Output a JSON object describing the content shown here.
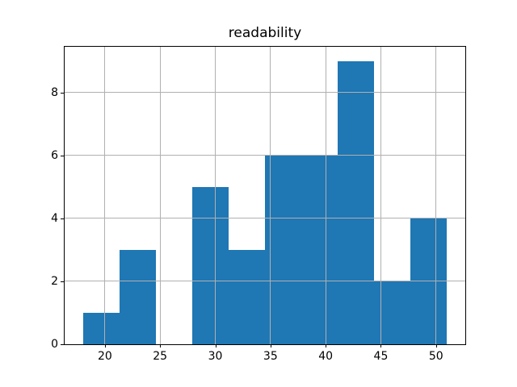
{
  "figure": {
    "title": "readability"
  },
  "chart_data": {
    "type": "bar",
    "subtype": "histogram",
    "title": "readability",
    "xlabel": "",
    "ylabel": "",
    "bin_edges": [
      18.0,
      21.3,
      24.6,
      27.9,
      31.2,
      34.5,
      37.8,
      41.1,
      44.4,
      47.7,
      51.0
    ],
    "counts": [
      1,
      3,
      0,
      5,
      3,
      6,
      6,
      9,
      2,
      4
    ],
    "x_ticks": [
      20,
      25,
      30,
      35,
      40,
      45,
      50
    ],
    "y_ticks": [
      0,
      2,
      4,
      6,
      8
    ],
    "xlim": [
      16.35,
      52.65
    ],
    "ylim": [
      0,
      9.45
    ],
    "grid": true,
    "grid_above_bars": true,
    "legend_position": "none",
    "colors": {
      "bar": "#1f77b4",
      "grid": "#b0b0b0",
      "spine": "#000000",
      "text": "#000000",
      "background": "#ffffff"
    }
  }
}
